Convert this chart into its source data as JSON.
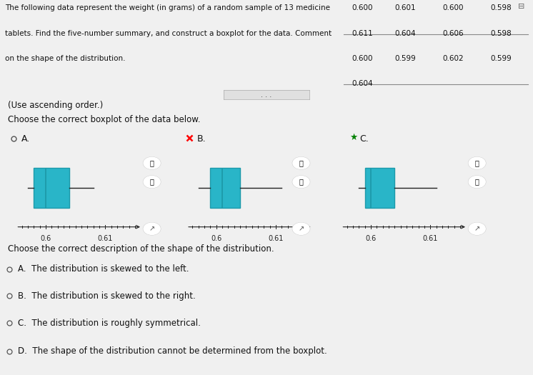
{
  "question_line1": "The following data represent the weight (in grams) of a random sample of 13 medicine",
  "question_line2": "tablets. Find the five-number summary, and construct a boxplot for the data. Comment",
  "question_line3": "on the shape of the distribution.",
  "data_col1": [
    "0.600",
    "0.611",
    "0.600",
    "0.604"
  ],
  "data_col2": [
    "0.601",
    "0.604",
    "0.599",
    ""
  ],
  "data_col3": [
    "0.600",
    "0.606",
    "0.602",
    ""
  ],
  "data_col4": [
    "0.598",
    "0.598",
    "0.599",
    ""
  ],
  "use_ascending": "(Use ascending order.)",
  "choose_boxplot": "Choose the correct boxplot of the data below.",
  "choose_description": "Choose the correct description of the shape of the distribution.",
  "options_desc": [
    "A.  The distribution is skewed to the left.",
    "B.  The distribution is skewed to the right.",
    "C.  The distribution is roughly symmetrical.",
    "D.  The shape of the distribution cannot be determined from the boxplot."
  ],
  "bg_color": "#e8e8e8",
  "panel_bg": "#e8e8e8",
  "box_color": "#29b5c8",
  "box_edge_color": "#1d9aaa",
  "whisker_color": "#222222",
  "text_color": "#111111",
  "xmin": 0.595,
  "xmax": 0.615,
  "xticks": [
    0.6,
    0.61
  ],
  "xtick_labels": [
    "0.6",
    "0.61"
  ],
  "boxplot_A": {
    "min": 0.597,
    "q1": 0.598,
    "median": 0.6,
    "q3": 0.604,
    "max": 0.608
  },
  "boxplot_B": {
    "min": 0.597,
    "q1": 0.599,
    "median": 0.601,
    "q3": 0.604,
    "max": 0.611
  },
  "boxplot_C": {
    "min": 0.598,
    "q1": 0.599,
    "median": 0.6,
    "q3": 0.604,
    "max": 0.611
  }
}
